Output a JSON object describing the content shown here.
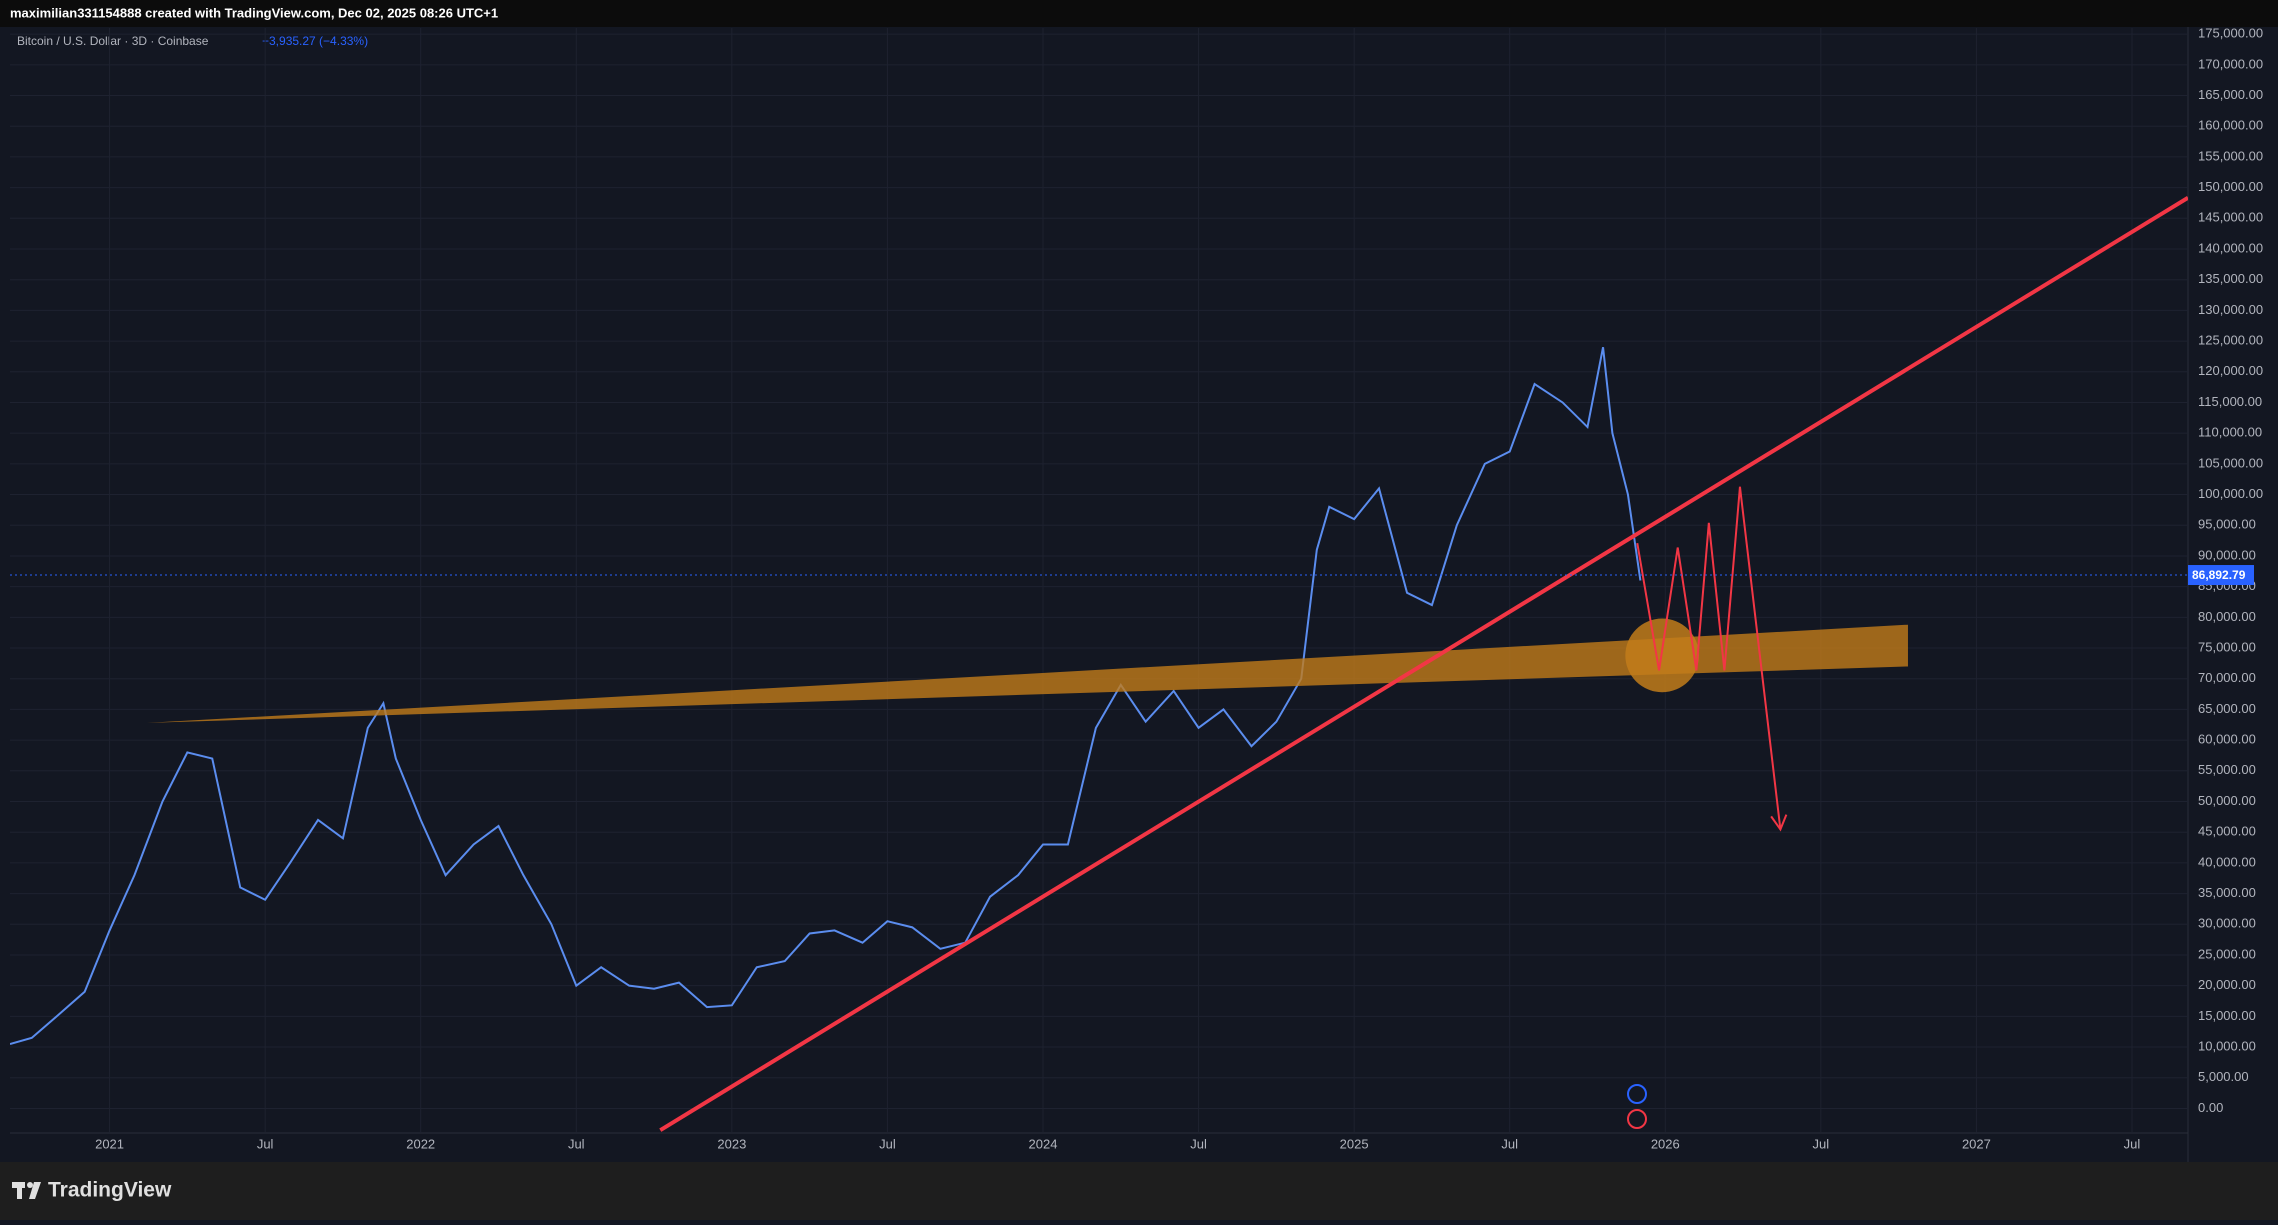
{
  "header": {
    "text": "maximilian331154888 created with TradingView.com, Dec 02, 2025 08:26 UTC+1"
  },
  "footer": {
    "brand": "TradingView"
  },
  "chart_data": {
    "type": "line",
    "title": "Bitcoin / U.S. Dollar · 3D · Coinbase",
    "change": "−3,935.27 (−4.33%)",
    "x": [
      2020.68,
      2020.75,
      2020.83,
      2020.92,
      2021.0,
      2021.08,
      2021.17,
      2021.25,
      2021.33,
      2021.42,
      2021.5,
      2021.58,
      2021.67,
      2021.75,
      2021.83,
      2021.88,
      2021.92,
      2022.0,
      2022.08,
      2022.17,
      2022.25,
      2022.33,
      2022.42,
      2022.5,
      2022.58,
      2022.67,
      2022.75,
      2022.83,
      2022.92,
      2023.0,
      2023.08,
      2023.17,
      2023.25,
      2023.33,
      2023.42,
      2023.5,
      2023.58,
      2023.67,
      2023.75,
      2023.83,
      2023.92,
      2024.0,
      2024.08,
      2024.17,
      2024.25,
      2024.33,
      2024.42,
      2024.5,
      2024.58,
      2024.67,
      2024.75,
      2024.83,
      2024.88,
      2024.92,
      2025.0,
      2025.08,
      2025.17,
      2025.25,
      2025.33,
      2025.42,
      2025.5,
      2025.58,
      2025.67,
      2025.75,
      2025.8,
      2025.83,
      2025.88,
      2025.92
    ],
    "series": [
      {
        "name": "Bitcoin / U.S. Dollar",
        "color": "#5b8def",
        "values": [
          10500,
          11500,
          15000,
          19000,
          29000,
          38000,
          50000,
          58000,
          57000,
          36000,
          34000,
          40000,
          47000,
          44000,
          62000,
          66000,
          57000,
          47000,
          38000,
          43000,
          46000,
          38000,
          30000,
          20000,
          23000,
          20000,
          19500,
          20500,
          16500,
          16800,
          23000,
          24000,
          28500,
          29000,
          27000,
          30500,
          29500,
          26000,
          27000,
          34500,
          38000,
          43000,
          43000,
          62000,
          69000,
          63000,
          68000,
          62000,
          65000,
          59000,
          63000,
          70000,
          91000,
          98000,
          96000,
          101000,
          84000,
          82000,
          95000,
          105000,
          107000,
          118000,
          115000,
          111000,
          124000,
          110000,
          100000,
          86000
        ]
      }
    ],
    "last_price": {
      "value": 86892.79,
      "label": "86,892.79",
      "color": "#2962ff"
    },
    "xlim": [
      2020.68,
      2027.68
    ],
    "ylim": [
      -4000,
      176000
    ],
    "xticks": [
      2021,
      {
        "value": 2021.5,
        "label": "Jul"
      },
      2022,
      {
        "value": 2022.5,
        "label": "Jul"
      },
      2023,
      {
        "value": 2023.5,
        "label": "Jul"
      },
      2024,
      {
        "value": 2024.5,
        "label": "Jul"
      },
      2025,
      {
        "value": 2025.5,
        "label": "Jul"
      },
      2026,
      {
        "value": 2026.5,
        "label": "Jul"
      },
      2027,
      {
        "value": 2027.5,
        "label": "Jul"
      }
    ],
    "yticks": [
      {
        "value": 0,
        "label": "0.00"
      },
      {
        "value": 5000,
        "label": "5,000.00"
      },
      {
        "value": 10000,
        "label": "10,000.00"
      },
      {
        "value": 15000,
        "label": "15,000.00"
      },
      {
        "value": 20000,
        "label": "20,000.00"
      },
      {
        "value": 25000,
        "label": "25,000.00"
      },
      {
        "value": 30000,
        "label": "30,000.00"
      },
      {
        "value": 35000,
        "label": "35,000.00"
      },
      {
        "value": 40000,
        "label": "40,000.00"
      },
      {
        "value": 45000,
        "label": "45,000.00"
      },
      {
        "value": 50000,
        "label": "50,000.00"
      },
      {
        "value": 55000,
        "label": "55,000.00"
      },
      {
        "value": 60000,
        "label": "60,000.00"
      },
      {
        "value": 65000,
        "label": "65,000.00"
      },
      {
        "value": 70000,
        "label": "70,000.00"
      },
      {
        "value": 75000,
        "label": "75,000.00"
      },
      {
        "value": 80000,
        "label": "80,000.00"
      },
      {
        "value": 85000,
        "label": "85,000.00"
      },
      {
        "value": 90000,
        "label": "90,000.00"
      },
      {
        "value": 95000,
        "label": "95,000.00"
      },
      {
        "value": 100000,
        "label": "100,000.00"
      },
      {
        "value": 105000,
        "label": "105,000.00"
      },
      {
        "value": 110000,
        "label": "110,000.00"
      },
      {
        "value": 115000,
        "label": "115,000.00"
      },
      {
        "value": 120000,
        "label": "120,000.00"
      },
      {
        "value": 125000,
        "label": "125,000.00"
      },
      {
        "value": 130000,
        "label": "130,000.00"
      },
      {
        "value": 135000,
        "label": "135,000.00"
      },
      {
        "value": 140000,
        "label": "140,000.00"
      },
      {
        "value": 145000,
        "label": "145,000.00"
      },
      {
        "value": 150000,
        "label": "150,000.00"
      },
      {
        "value": 155000,
        "label": "155,000.00"
      },
      {
        "value": 160000,
        "label": "160,000.00"
      },
      {
        "value": 165000,
        "label": "165,000.00"
      },
      {
        "value": 170000,
        "label": "170,000.00"
      },
      {
        "value": 175000,
        "label": "175,000.00"
      }
    ],
    "grid": true,
    "drawings": [
      {
        "type": "band",
        "color": "#c27c1a",
        "x": [
          2021.12,
          2026.78,
          2026.78
        ],
        "y": [
          62800,
          78800,
          72000
        ]
      },
      {
        "type": "trendline",
        "color": "#f23645",
        "x": [
          2022.77,
          2027.68
        ],
        "y": [
          -3540,
          148350
        ]
      },
      {
        "type": "circle",
        "color": "#c27c1a",
        "x": [
          2025.99
        ],
        "y": [
          73800,
          6000
        ]
      },
      {
        "type": "path",
        "color": "#f23645",
        "x": [
          2025.91,
          2025.98,
          2026.04,
          2026.1,
          2026.14,
          2026.19,
          2026.24,
          2026.37
        ],
        "y": [
          92090,
          71360,
          91380,
          71360,
          95390,
          71360,
          101270,
          45450
        ]
      }
    ]
  }
}
